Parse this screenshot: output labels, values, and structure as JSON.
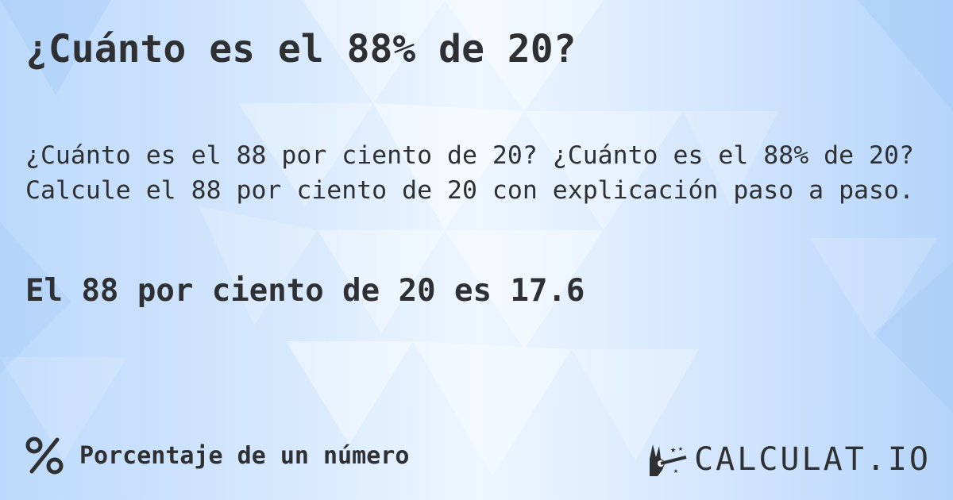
{
  "title": "¿Cuánto es el 88% de 20?",
  "description": {
    "line1": "¿Cuánto es el 88 por ciento de 20? ¿Cuánto es el 88% de 20?",
    "line2": "Calcule el 88 por ciento de 20 con explicación paso a paso."
  },
  "result": "El 88 por ciento de 20 es 17.6",
  "footer": {
    "icon": "percent-icon",
    "label": "Porcentaje de un número"
  },
  "logo": {
    "text": "CALCULAT.IO",
    "icon": "magic-hand-icon"
  },
  "colors": {
    "text": "#2f3033",
    "background": "#d6e8fd"
  }
}
